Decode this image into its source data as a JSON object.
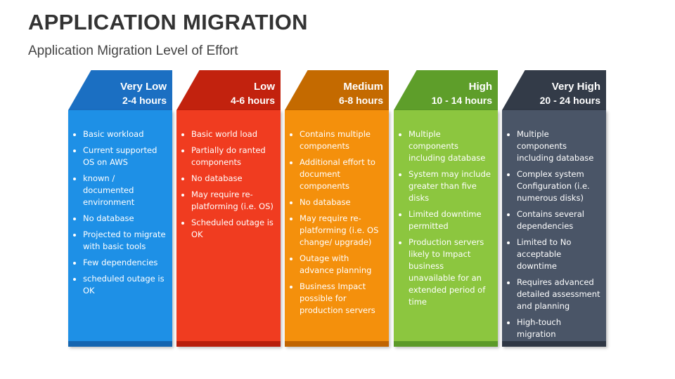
{
  "header": {
    "title": "APPLICATION MIGRATION",
    "subtitle": "Application Migration Level of Effort"
  },
  "columns": [
    {
      "level": "Very Low",
      "hours": "2-4 hours",
      "items": [
        "Basic workload",
        "Current supported OS on AWS",
        "known / documented environment",
        "No database",
        "Projected to migrate with basic tools",
        "Few dependencies",
        "scheduled outage is OK"
      ]
    },
    {
      "level": "Low",
      "hours": "4-6 hours",
      "items": [
        "Basic world load",
        "Partially do ranted components",
        "No database",
        "May require re-platforming (i.e. OS)",
        "Scheduled outage is OK"
      ]
    },
    {
      "level": "Medium",
      "hours": "6-8 hours",
      "items": [
        "Contains multiple components",
        "Additional effort to document components",
        "No database",
        "May require re-platforming (i.e. OS change/ upgrade)",
        "Outage with advance planning",
        "Business Impact possible for production servers"
      ]
    },
    {
      "level": "High",
      "hours": "10 - 14 hours",
      "items": [
        "Multiple components including database",
        "System may include greater than five disks",
        "Limited downtime permitted",
        "Production servers likely to Impact business unavailable for an extended period of time"
      ]
    },
    {
      "level": "Very High",
      "hours": "20 - 24 hours",
      "items": [
        "Multiple components including database",
        "Complex system Configuration (i.e. numerous disks)",
        "Contains several dependencies",
        "Limited to No acceptable downtime",
        "Requires advanced detailed assessment and planning",
        "High-touch migration"
      ]
    }
  ]
}
